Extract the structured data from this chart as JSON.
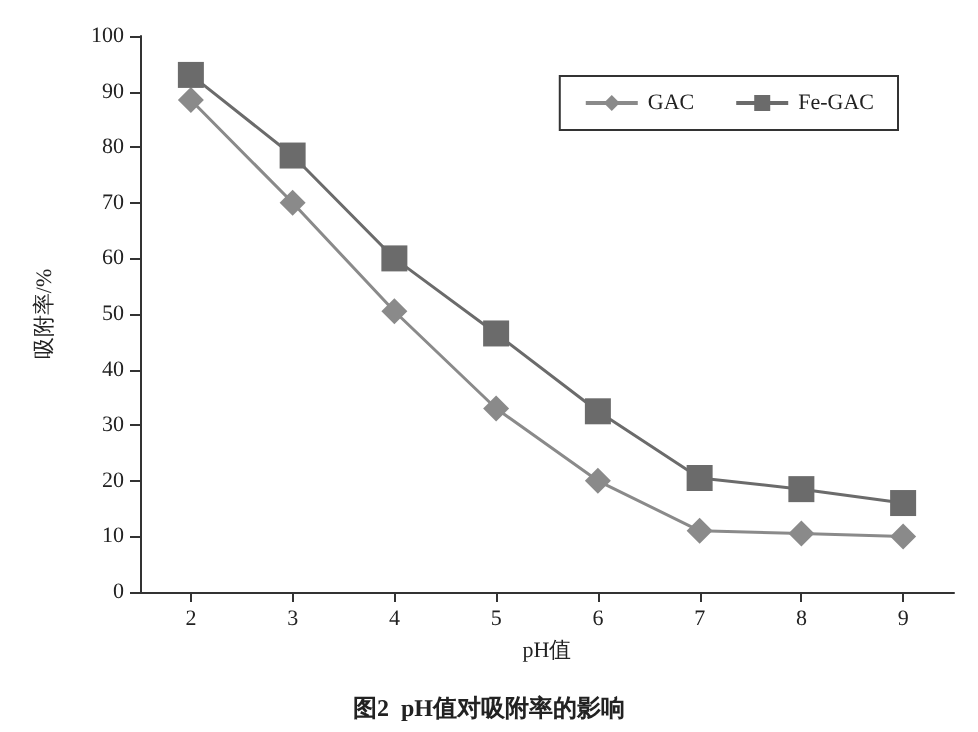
{
  "chart_data": {
    "type": "line",
    "xlabel": "pH值",
    "ylabel": "吸附率/%",
    "categories": [
      "2",
      "3",
      "4",
      "5",
      "6",
      "7",
      "8",
      "9"
    ],
    "series": [
      {
        "name": "GAC",
        "color": "#8a8a8a",
        "marker": "diamond",
        "values": [
          88.5,
          70,
          50.5,
          33,
          20,
          11,
          10.5,
          10
        ]
      },
      {
        "name": "Fe-GAC",
        "color": "#6b6b6b",
        "marker": "square",
        "values": [
          93,
          78.5,
          60,
          46.5,
          32.5,
          20.5,
          18.5,
          16
        ]
      }
    ],
    "ylim": [
      0,
      100
    ],
    "yticks": [
      0,
      10,
      20,
      30,
      40,
      50,
      60,
      70,
      80,
      90,
      100
    ],
    "grid": false,
    "legend": "top right",
    "line_style": "solid",
    "annotations": [
      "图2  pH值对吸附率的影响"
    ]
  }
}
